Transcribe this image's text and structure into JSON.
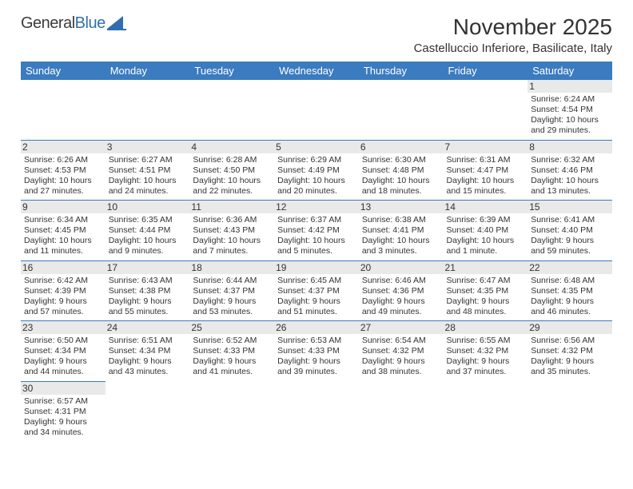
{
  "brand": {
    "part1": "General",
    "part2": "Blue"
  },
  "title": "November 2025",
  "location": "Castelluccio Inferiore, Basilicate, Italy",
  "colors": {
    "header_bg": "#3b7bbf",
    "header_fg": "#ffffff",
    "daynum_bg": "#e9e9e9",
    "border": "#3b7bbf",
    "text": "#333333",
    "brand_blue": "#2f6fb0"
  },
  "weekdays": [
    "Sunday",
    "Monday",
    "Tuesday",
    "Wednesday",
    "Thursday",
    "Friday",
    "Saturday"
  ],
  "weeks": [
    [
      null,
      null,
      null,
      null,
      null,
      null,
      {
        "n": "1",
        "sr": "Sunrise: 6:24 AM",
        "ss": "Sunset: 4:54 PM",
        "d1": "Daylight: 10 hours",
        "d2": "and 29 minutes."
      }
    ],
    [
      {
        "n": "2",
        "sr": "Sunrise: 6:26 AM",
        "ss": "Sunset: 4:53 PM",
        "d1": "Daylight: 10 hours",
        "d2": "and 27 minutes."
      },
      {
        "n": "3",
        "sr": "Sunrise: 6:27 AM",
        "ss": "Sunset: 4:51 PM",
        "d1": "Daylight: 10 hours",
        "d2": "and 24 minutes."
      },
      {
        "n": "4",
        "sr": "Sunrise: 6:28 AM",
        "ss": "Sunset: 4:50 PM",
        "d1": "Daylight: 10 hours",
        "d2": "and 22 minutes."
      },
      {
        "n": "5",
        "sr": "Sunrise: 6:29 AM",
        "ss": "Sunset: 4:49 PM",
        "d1": "Daylight: 10 hours",
        "d2": "and 20 minutes."
      },
      {
        "n": "6",
        "sr": "Sunrise: 6:30 AM",
        "ss": "Sunset: 4:48 PM",
        "d1": "Daylight: 10 hours",
        "d2": "and 18 minutes."
      },
      {
        "n": "7",
        "sr": "Sunrise: 6:31 AM",
        "ss": "Sunset: 4:47 PM",
        "d1": "Daylight: 10 hours",
        "d2": "and 15 minutes."
      },
      {
        "n": "8",
        "sr": "Sunrise: 6:32 AM",
        "ss": "Sunset: 4:46 PM",
        "d1": "Daylight: 10 hours",
        "d2": "and 13 minutes."
      }
    ],
    [
      {
        "n": "9",
        "sr": "Sunrise: 6:34 AM",
        "ss": "Sunset: 4:45 PM",
        "d1": "Daylight: 10 hours",
        "d2": "and 11 minutes."
      },
      {
        "n": "10",
        "sr": "Sunrise: 6:35 AM",
        "ss": "Sunset: 4:44 PM",
        "d1": "Daylight: 10 hours",
        "d2": "and 9 minutes."
      },
      {
        "n": "11",
        "sr": "Sunrise: 6:36 AM",
        "ss": "Sunset: 4:43 PM",
        "d1": "Daylight: 10 hours",
        "d2": "and 7 minutes."
      },
      {
        "n": "12",
        "sr": "Sunrise: 6:37 AM",
        "ss": "Sunset: 4:42 PM",
        "d1": "Daylight: 10 hours",
        "d2": "and 5 minutes."
      },
      {
        "n": "13",
        "sr": "Sunrise: 6:38 AM",
        "ss": "Sunset: 4:41 PM",
        "d1": "Daylight: 10 hours",
        "d2": "and 3 minutes."
      },
      {
        "n": "14",
        "sr": "Sunrise: 6:39 AM",
        "ss": "Sunset: 4:40 PM",
        "d1": "Daylight: 10 hours",
        "d2": "and 1 minute."
      },
      {
        "n": "15",
        "sr": "Sunrise: 6:41 AM",
        "ss": "Sunset: 4:40 PM",
        "d1": "Daylight: 9 hours",
        "d2": "and 59 minutes."
      }
    ],
    [
      {
        "n": "16",
        "sr": "Sunrise: 6:42 AM",
        "ss": "Sunset: 4:39 PM",
        "d1": "Daylight: 9 hours",
        "d2": "and 57 minutes."
      },
      {
        "n": "17",
        "sr": "Sunrise: 6:43 AM",
        "ss": "Sunset: 4:38 PM",
        "d1": "Daylight: 9 hours",
        "d2": "and 55 minutes."
      },
      {
        "n": "18",
        "sr": "Sunrise: 6:44 AM",
        "ss": "Sunset: 4:37 PM",
        "d1": "Daylight: 9 hours",
        "d2": "and 53 minutes."
      },
      {
        "n": "19",
        "sr": "Sunrise: 6:45 AM",
        "ss": "Sunset: 4:37 PM",
        "d1": "Daylight: 9 hours",
        "d2": "and 51 minutes."
      },
      {
        "n": "20",
        "sr": "Sunrise: 6:46 AM",
        "ss": "Sunset: 4:36 PM",
        "d1": "Daylight: 9 hours",
        "d2": "and 49 minutes."
      },
      {
        "n": "21",
        "sr": "Sunrise: 6:47 AM",
        "ss": "Sunset: 4:35 PM",
        "d1": "Daylight: 9 hours",
        "d2": "and 48 minutes."
      },
      {
        "n": "22",
        "sr": "Sunrise: 6:48 AM",
        "ss": "Sunset: 4:35 PM",
        "d1": "Daylight: 9 hours",
        "d2": "and 46 minutes."
      }
    ],
    [
      {
        "n": "23",
        "sr": "Sunrise: 6:50 AM",
        "ss": "Sunset: 4:34 PM",
        "d1": "Daylight: 9 hours",
        "d2": "and 44 minutes."
      },
      {
        "n": "24",
        "sr": "Sunrise: 6:51 AM",
        "ss": "Sunset: 4:34 PM",
        "d1": "Daylight: 9 hours",
        "d2": "and 43 minutes."
      },
      {
        "n": "25",
        "sr": "Sunrise: 6:52 AM",
        "ss": "Sunset: 4:33 PM",
        "d1": "Daylight: 9 hours",
        "d2": "and 41 minutes."
      },
      {
        "n": "26",
        "sr": "Sunrise: 6:53 AM",
        "ss": "Sunset: 4:33 PM",
        "d1": "Daylight: 9 hours",
        "d2": "and 39 minutes."
      },
      {
        "n": "27",
        "sr": "Sunrise: 6:54 AM",
        "ss": "Sunset: 4:32 PM",
        "d1": "Daylight: 9 hours",
        "d2": "and 38 minutes."
      },
      {
        "n": "28",
        "sr": "Sunrise: 6:55 AM",
        "ss": "Sunset: 4:32 PM",
        "d1": "Daylight: 9 hours",
        "d2": "and 37 minutes."
      },
      {
        "n": "29",
        "sr": "Sunrise: 6:56 AM",
        "ss": "Sunset: 4:32 PM",
        "d1": "Daylight: 9 hours",
        "d2": "and 35 minutes."
      }
    ],
    [
      {
        "n": "30",
        "sr": "Sunrise: 6:57 AM",
        "ss": "Sunset: 4:31 PM",
        "d1": "Daylight: 9 hours",
        "d2": "and 34 minutes."
      },
      null,
      null,
      null,
      null,
      null,
      null
    ]
  ]
}
